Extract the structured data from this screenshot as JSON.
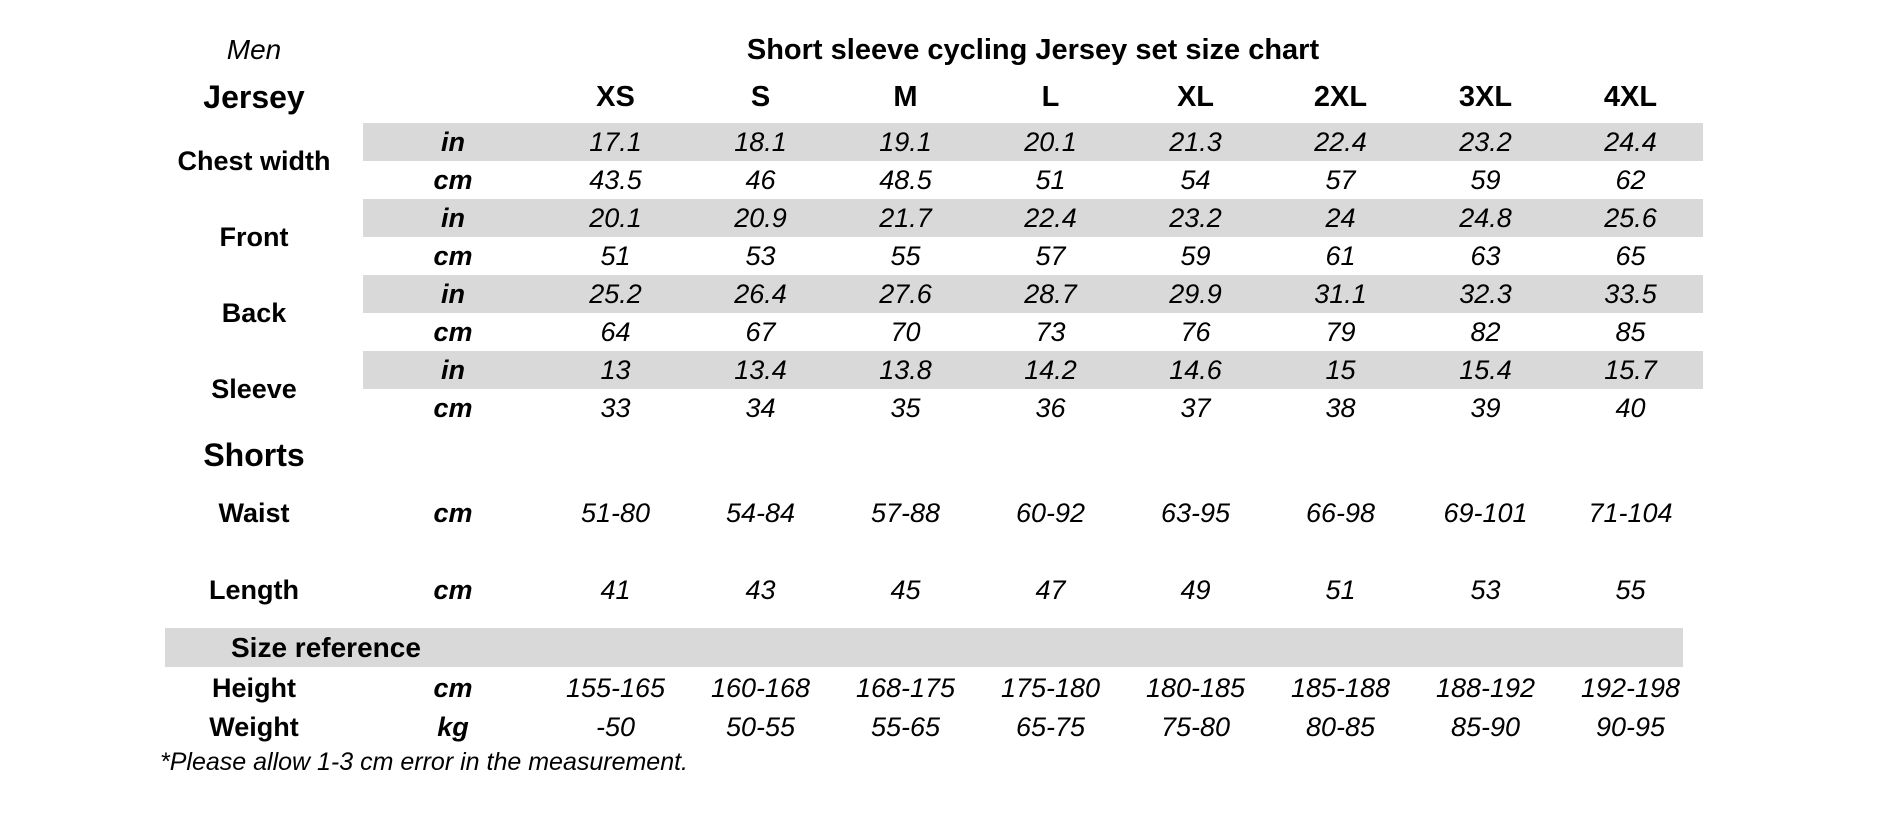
{
  "page": {
    "gender_label": "Men",
    "title": "Short sleeve cycling Jersey set size chart",
    "footnote": "*Please allow 1-3 cm error in the measurement."
  },
  "sizes": [
    "XS",
    "S",
    "M",
    "L",
    "XL",
    "2XL",
    "3XL",
    "4XL"
  ],
  "jersey": {
    "heading": "Jersey",
    "measurements": [
      {
        "label": "Chest width",
        "rows": [
          {
            "unit": "in",
            "values": [
              "17.1",
              "18.1",
              "19.1",
              "20.1",
              "21.3",
              "22.4",
              "23.2",
              "24.4"
            ]
          },
          {
            "unit": "cm",
            "values": [
              "43.5",
              "46",
              "48.5",
              "51",
              "54",
              "57",
              "59",
              "62"
            ]
          }
        ]
      },
      {
        "label": "Front",
        "rows": [
          {
            "unit": "in",
            "values": [
              "20.1",
              "20.9",
              "21.7",
              "22.4",
              "23.2",
              "24",
              "24.8",
              "25.6"
            ]
          },
          {
            "unit": "cm",
            "values": [
              "51",
              "53",
              "55",
              "57",
              "59",
              "61",
              "63",
              "65"
            ]
          }
        ]
      },
      {
        "label": "Back",
        "rows": [
          {
            "unit": "in",
            "values": [
              "25.2",
              "26.4",
              "27.6",
              "28.7",
              "29.9",
              "31.1",
              "32.3",
              "33.5"
            ]
          },
          {
            "unit": "cm",
            "values": [
              "64",
              "67",
              "70",
              "73",
              "76",
              "79",
              "82",
              "85"
            ]
          }
        ]
      },
      {
        "label": "Sleeve",
        "rows": [
          {
            "unit": "in",
            "values": [
              "13",
              "13.4",
              "13.8",
              "14.2",
              "14.6",
              "15",
              "15.4",
              "15.7"
            ]
          },
          {
            "unit": "cm",
            "values": [
              "33",
              "34",
              "35",
              "36",
              "37",
              "38",
              "39",
              "40"
            ]
          }
        ]
      }
    ]
  },
  "shorts": {
    "heading": "Shorts",
    "measurements": [
      {
        "label": "Waist",
        "unit": "cm",
        "values": [
          "51-80",
          "54-84",
          "57-88",
          "60-92",
          "63-95",
          "66-98",
          "69-101",
          "71-104"
        ]
      },
      {
        "label": "Length",
        "unit": "cm",
        "values": [
          "41",
          "43",
          "45",
          "47",
          "49",
          "51",
          "53",
          "55"
        ]
      }
    ]
  },
  "size_reference": {
    "heading": "Size reference",
    "measurements": [
      {
        "label": "Height",
        "unit": "cm",
        "values": [
          "155-165",
          "160-168",
          "168-175",
          "175-180",
          "180-185",
          "185-188",
          "188-192",
          "192-198"
        ]
      },
      {
        "label": "Weight",
        "unit": "kg",
        "values": [
          "-50",
          "50-55",
          "55-65",
          "65-75",
          "75-80",
          "80-85",
          "85-90",
          "90-95"
        ]
      }
    ]
  }
}
